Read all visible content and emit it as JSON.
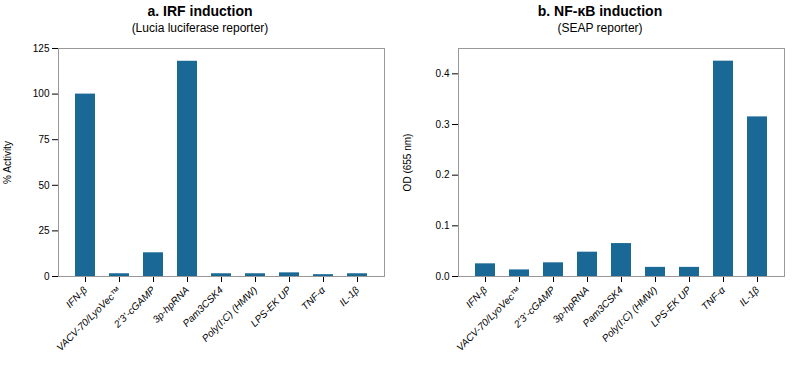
{
  "chart_data": [
    {
      "type": "bar",
      "title": "a. IRF induction",
      "subtitle": "(Lucia luciferase reporter)",
      "ylabel": "% Activity",
      "categories": [
        "IFN-β",
        "VACV-70/LyoVec™",
        "2’3’-cGAMP",
        "3p-hpRNA",
        "Pam3CSK4",
        "Poly(I:C) (HMW)",
        "LPS-EK UP",
        "TNF-α",
        "IL-1β"
      ],
      "values": [
        100,
        1.5,
        13,
        118,
        1.5,
        1.5,
        2.0,
        1.0,
        1.5
      ],
      "color": "#1a6896",
      "ylim": [
        0,
        125
      ],
      "yticks": [
        0,
        25,
        50,
        75,
        100,
        125
      ],
      "grid": false
    },
    {
      "type": "bar",
      "title": "b. NF-κB induction",
      "subtitle": "(SEAP reporter)",
      "ylabel": "OD (655 nm)",
      "categories": [
        "IFN-β",
        "VACV-70/LyoVec™",
        "2’3’-cGAMP",
        "3p-hpRNA",
        "Pam3CSK4",
        "Poly(I:C) (HMW)",
        "LPS-EK UP",
        "TNF-α",
        "IL-1β"
      ],
      "values": [
        0.025,
        0.013,
        0.027,
        0.048,
        0.065,
        0.018,
        0.018,
        0.425,
        0.315
      ],
      "color": "#1a6896",
      "ylim": [
        0,
        0.45
      ],
      "yticks": [
        {
          "value": 0,
          "label": "0.0"
        },
        0.1,
        0.2,
        0.3,
        0.4
      ],
      "grid": false
    }
  ]
}
